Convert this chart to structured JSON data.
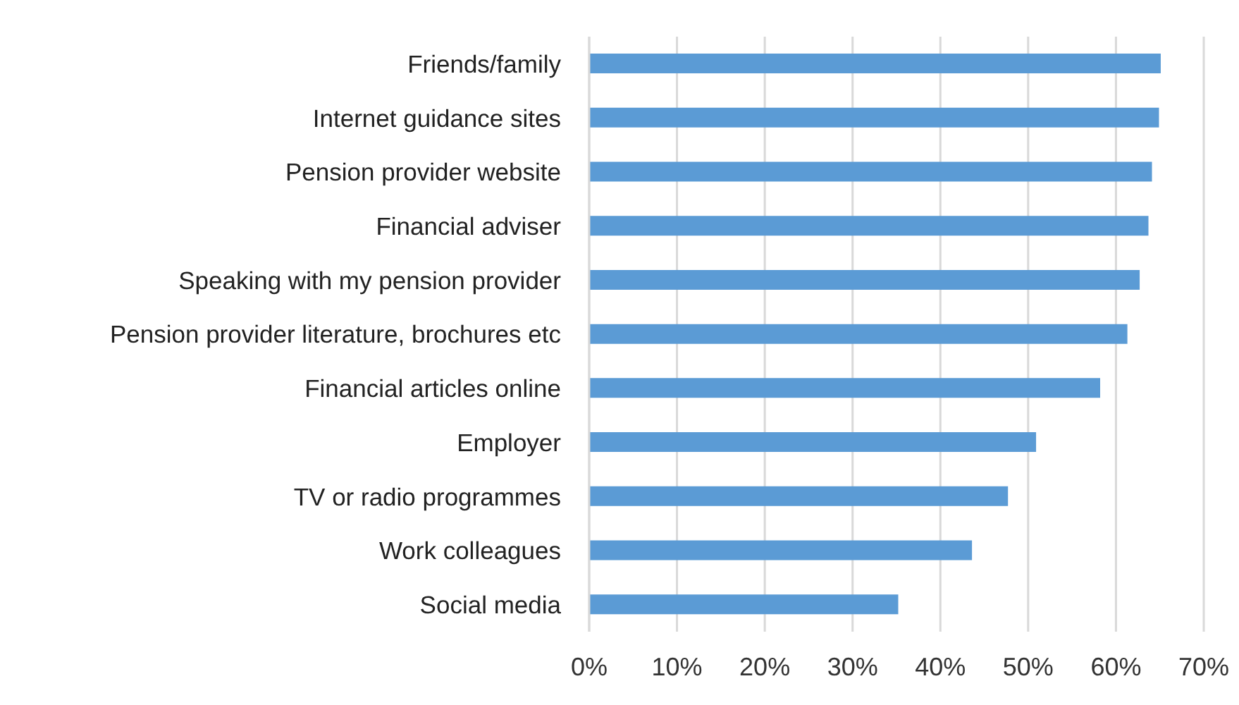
{
  "chart_data": {
    "type": "bar",
    "orientation": "horizontal",
    "categories": [
      "Friends/family",
      "Internet guidance sites",
      "Pension provider website",
      "Financial adviser",
      "Speaking with my pension provider",
      "Pension provider literature, brochures etc",
      "Financial articles online",
      "Employer",
      "TV or radio programmes",
      "Work colleagues",
      "Social media"
    ],
    "values": [
      65.1,
      64.9,
      64.1,
      63.7,
      62.7,
      61.3,
      58.2,
      50.9,
      47.7,
      43.6,
      35.2
    ],
    "color": "#5b9bd5",
    "xlim": [
      0,
      70
    ],
    "xticks": [
      {
        "value": 0,
        "label": "0%"
      },
      {
        "value": 10,
        "label": "10%"
      },
      {
        "value": 20,
        "label": "20%"
      },
      {
        "value": 30,
        "label": "30%"
      },
      {
        "value": 40,
        "label": "40%"
      },
      {
        "value": 50,
        "label": "50%"
      },
      {
        "value": 60,
        "label": "60%"
      },
      {
        "value": 70,
        "label": "70%"
      }
    ],
    "grid": "x"
  }
}
